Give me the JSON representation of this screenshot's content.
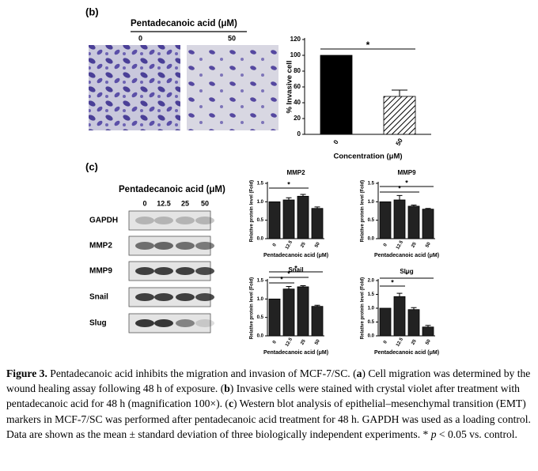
{
  "figure": {
    "panel_b": {
      "label": "(b)",
      "header": "Pentadecanoic acid (μM)",
      "image_labels": [
        "0",
        "50"
      ]
    },
    "panel_c": {
      "label": "(c)",
      "header": "Pentadecanoic acid (μM)",
      "lanes": [
        "0",
        "12.5",
        "25",
        "50"
      ],
      "rows": [
        "GAPDH",
        "MMP2",
        "MMP9",
        "Snail",
        "Slug"
      ]
    }
  },
  "chart_data": [
    {
      "type": "bar",
      "ylabel": "% Invasive cell",
      "xlabel": "Concentration (μM)",
      "categories": [
        "0",
        "50"
      ],
      "values": [
        100,
        48
      ],
      "errors": [
        0,
        8
      ],
      "colors": [
        "#000000",
        "hatch"
      ],
      "ylim": [
        0,
        120
      ],
      "yticks": [
        0,
        20,
        40,
        60,
        80,
        100,
        120
      ],
      "annotations": [
        "*"
      ]
    },
    {
      "type": "bar",
      "title": "MMP2",
      "ylabel": "Relative protein level (Fold)",
      "xlabel": "Pentadecanoic acid (μM)",
      "categories": [
        "0",
        "12.5",
        "25",
        "50"
      ],
      "values": [
        1.0,
        1.05,
        1.15,
        0.82
      ],
      "errors": [
        0,
        0.06,
        0.05,
        0.04
      ],
      "color": "#222222",
      "ylim": [
        0,
        1.5
      ],
      "yticks": [
        {
          "value": 0,
          "label": "0.0"
        },
        {
          "value": 0.5,
          "label": "0.5"
        },
        {
          "value": 1,
          "label": "1.0"
        },
        {
          "value": 1.5,
          "label": "1.5"
        }
      ],
      "annotations": [
        "*"
      ]
    },
    {
      "type": "bar",
      "title": "MMP9",
      "ylabel": "Relative protein level (Fold)",
      "xlabel": "Pentadecanoic acid (μM)",
      "categories": [
        "0",
        "12.5",
        "25",
        "50"
      ],
      "values": [
        1.0,
        1.05,
        0.88,
        0.8
      ],
      "errors": [
        0,
        0.12,
        0.03,
        0.02
      ],
      "color": "#222222",
      "ylim": [
        0,
        1.5
      ],
      "yticks": [
        {
          "value": 0,
          "label": "0.0"
        },
        {
          "value": 0.5,
          "label": "0.5"
        },
        {
          "value": 1,
          "label": "1.0"
        },
        {
          "value": 1.5,
          "label": "1.5"
        }
      ],
      "annotations": [
        "*",
        "*"
      ]
    },
    {
      "type": "bar",
      "title": "Snail",
      "ylabel": "Relative protein level (Fold)",
      "xlabel": "Pentadecanoic acid (μM)",
      "categories": [
        "0",
        "12.5",
        "25",
        "50"
      ],
      "values": [
        1.0,
        1.27,
        1.33,
        0.8
      ],
      "errors": [
        0,
        0.07,
        0.03,
        0.03
      ],
      "color": "#222222",
      "ylim": [
        0,
        1.5
      ],
      "yticks": [
        {
          "value": 0,
          "label": "0.0"
        },
        {
          "value": 0.5,
          "label": "0.5"
        },
        {
          "value": 1,
          "label": "1.0"
        },
        {
          "value": 1.5,
          "label": "1.5"
        }
      ],
      "annotations": [
        "*",
        "*",
        "*"
      ]
    },
    {
      "type": "bar",
      "title": "Slug",
      "ylabel": "Relative protein level (Fold)",
      "xlabel": "Pentadecanoic acid (μM)",
      "categories": [
        "0",
        "12.5",
        "25",
        "50"
      ],
      "values": [
        1.0,
        1.42,
        0.95,
        0.32
      ],
      "errors": [
        0,
        0.12,
        0.07,
        0.06
      ],
      "color": "#222222",
      "ylim": [
        0,
        2
      ],
      "yticks": [
        {
          "value": 0,
          "label": "0.0"
        },
        {
          "value": 0.5,
          "label": "0.5"
        },
        {
          "value": 1,
          "label": "1.0"
        },
        {
          "value": 1.5,
          "label": "1.5"
        },
        {
          "value": 2,
          "label": "2.0"
        }
      ],
      "annotations": [
        "*",
        "*"
      ]
    }
  ],
  "caption": {
    "segments": [
      "Figure 3.",
      " Pentadecanoic acid inhibits the migration and invasion of MCF-7/SC. (",
      "a",
      ") Cell migration was determined by the wound healing assay following 48 h of exposure. (",
      "b",
      ") Invasive cells were stained with crystal violet after treatment with pentadecanoic acid for 48 h (magnification 100×). (",
      "c",
      ") Western blot analysis of epithelial–mesenchymal transition (EMT) markers in MCF-7/SC was performed after pentadecanoic acid treatment for 48 h. GAPDH was used as a loading control. Data are shown as the mean ± standard deviation of three biologically independent experiments. * ",
      "p",
      " < 0.05 vs. control."
    ]
  }
}
